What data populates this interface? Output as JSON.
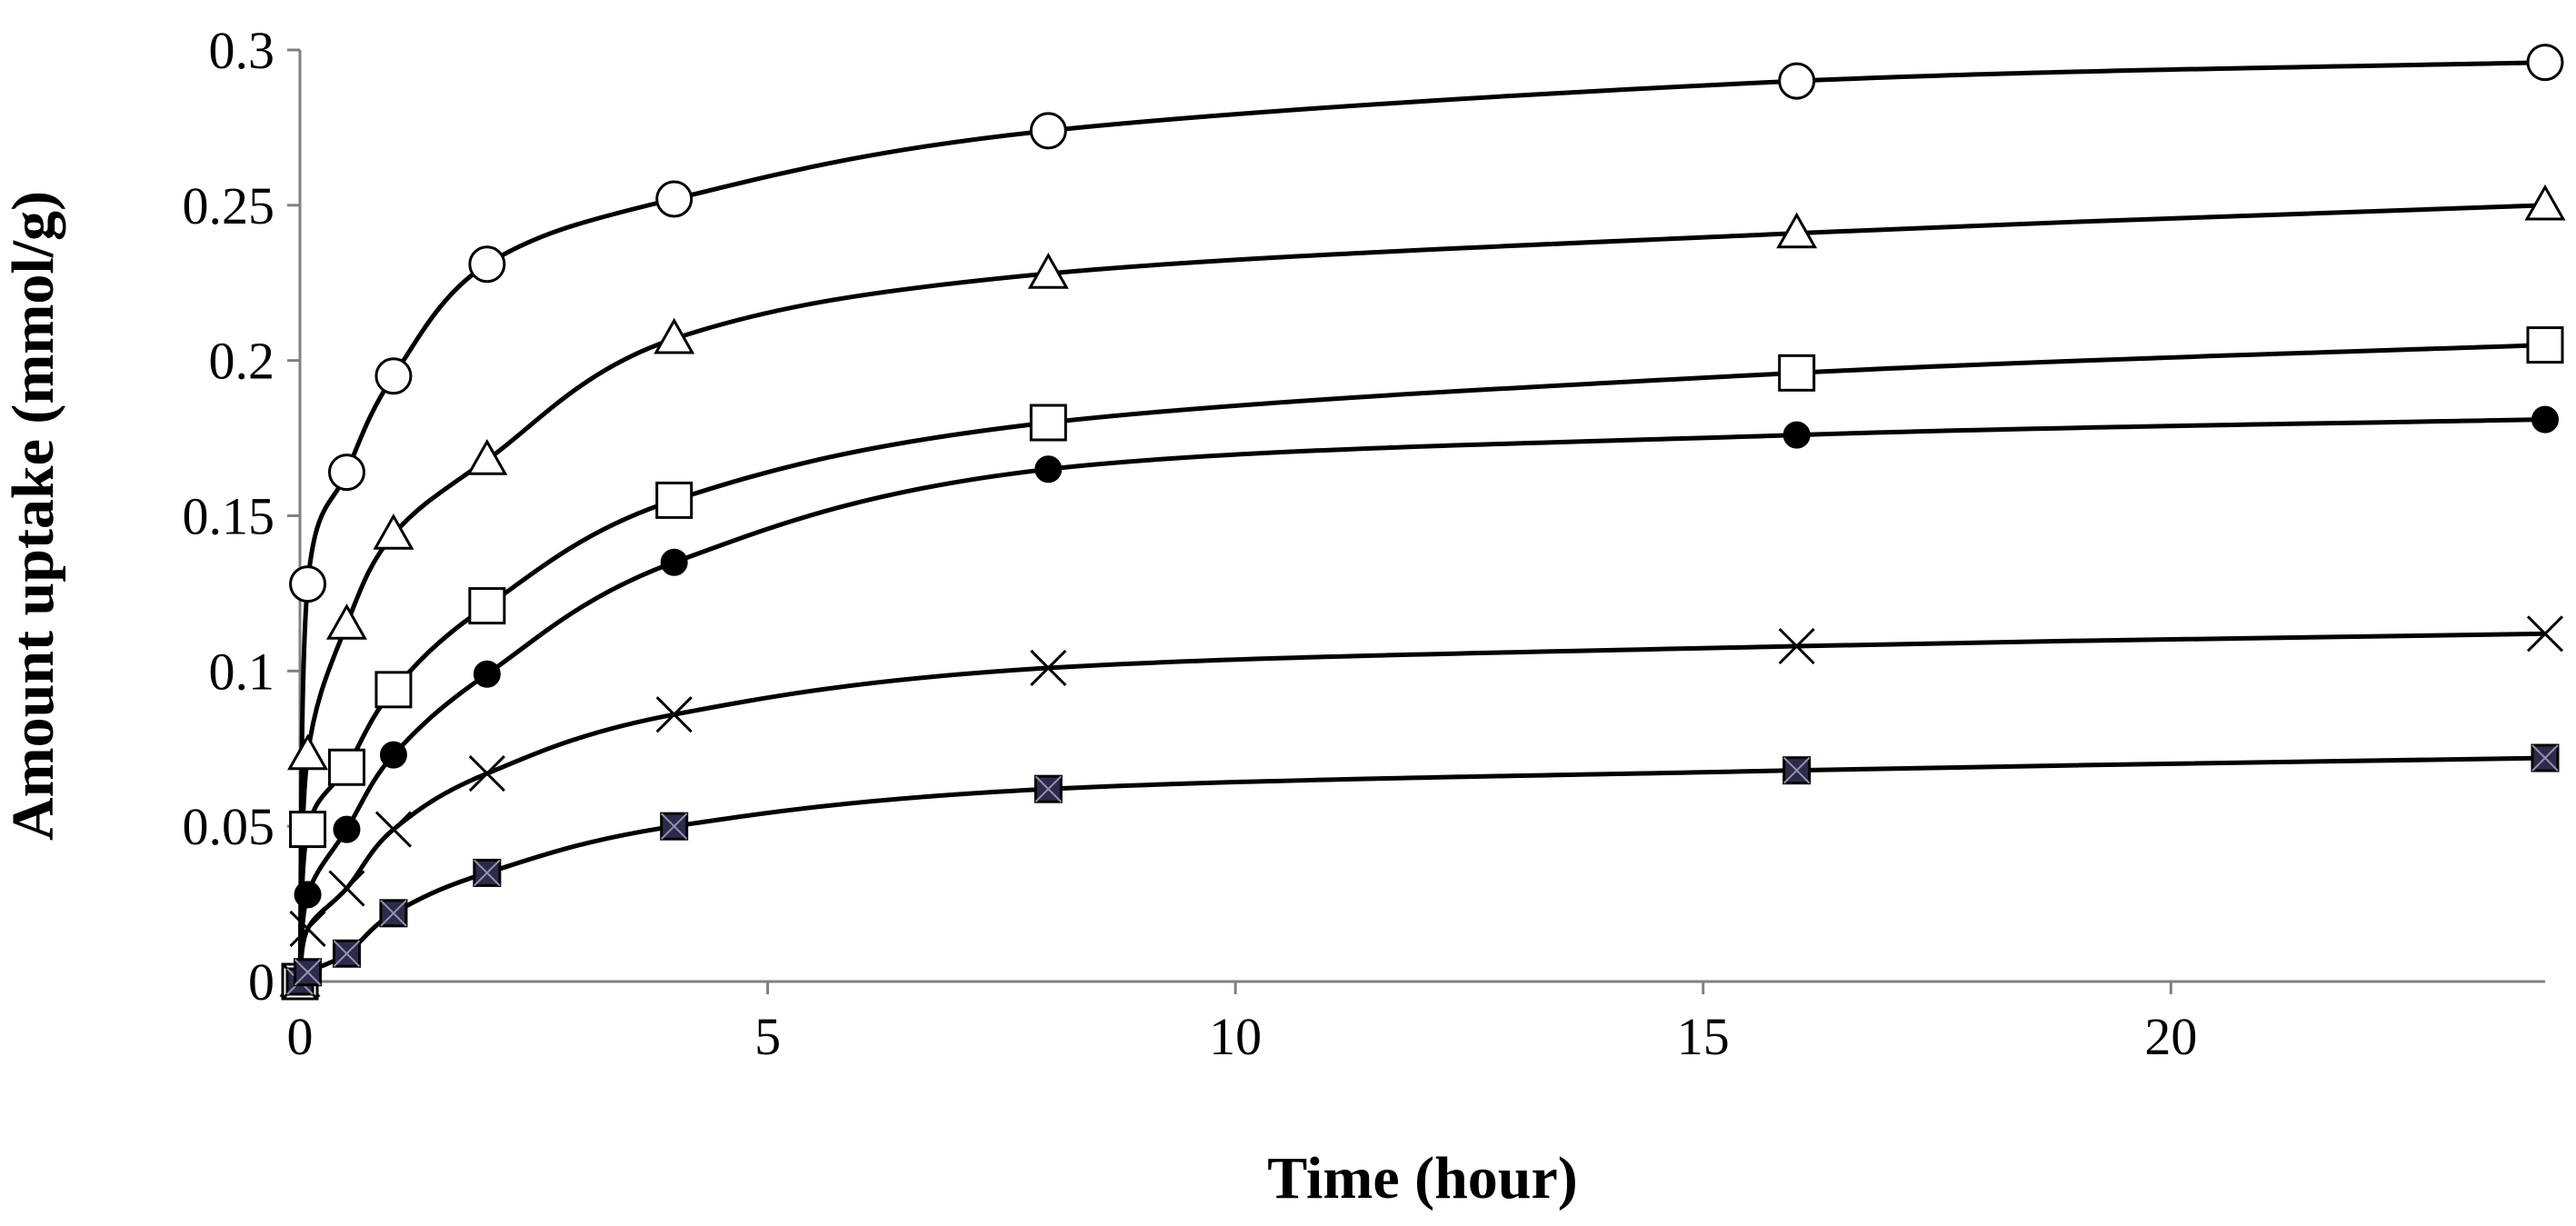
{
  "chart_data": {
    "type": "line",
    "title": "",
    "xlabel": "Time (hour)",
    "ylabel": "Amount uptake (mmol/g)",
    "xlim": [
      0,
      24
    ],
    "ylim": [
      0,
      0.3
    ],
    "xticks": [
      0,
      5,
      10,
      15,
      20
    ],
    "xtick_labels": [
      "0",
      "5",
      "10",
      "15",
      "20"
    ],
    "yticks": [
      0,
      0.05,
      0.1,
      0.15,
      0.2,
      0.25,
      0.3
    ],
    "ytick_labels": [
      "0",
      "0.05",
      "0.1",
      "0.15",
      "0.2",
      "0.25",
      "0.3"
    ],
    "grid": false,
    "legend": "none",
    "x": [
      0,
      0.083,
      0.5,
      1,
      2,
      4,
      8,
      16,
      24
    ],
    "series": [
      {
        "name": "open-circle",
        "marker": "circle-open",
        "values": [
          0,
          0.128,
          0.164,
          0.195,
          0.231,
          0.252,
          0.274,
          0.29,
          0.296
        ]
      },
      {
        "name": "open-triangle",
        "marker": "triangle-open",
        "values": [
          0,
          0.073,
          0.115,
          0.144,
          0.168,
          0.207,
          0.228,
          0.241,
          0.25
        ]
      },
      {
        "name": "open-square",
        "marker": "square-open",
        "values": [
          0,
          0.049,
          0.069,
          0.094,
          0.121,
          0.155,
          0.18,
          0.196,
          0.205
        ]
      },
      {
        "name": "filled-circle",
        "marker": "circle-filled",
        "values": [
          0,
          0.028,
          0.049,
          0.073,
          0.099,
          0.135,
          0.165,
          0.176,
          0.181
        ]
      },
      {
        "name": "cross",
        "marker": "x",
        "values": [
          0,
          0.017,
          0.03,
          0.049,
          0.067,
          0.086,
          0.101,
          0.108,
          0.112
        ]
      },
      {
        "name": "filled-square-x",
        "marker": "square-x-filled",
        "values": [
          0,
          0.003,
          0.009,
          0.022,
          0.035,
          0.05,
          0.062,
          0.068,
          0.072
        ]
      }
    ],
    "colors": {
      "line": "#000000",
      "axis": "#808080",
      "marker_fill_dark": "#2b2b4a",
      "marker_fill_open": "#ffffff"
    }
  }
}
